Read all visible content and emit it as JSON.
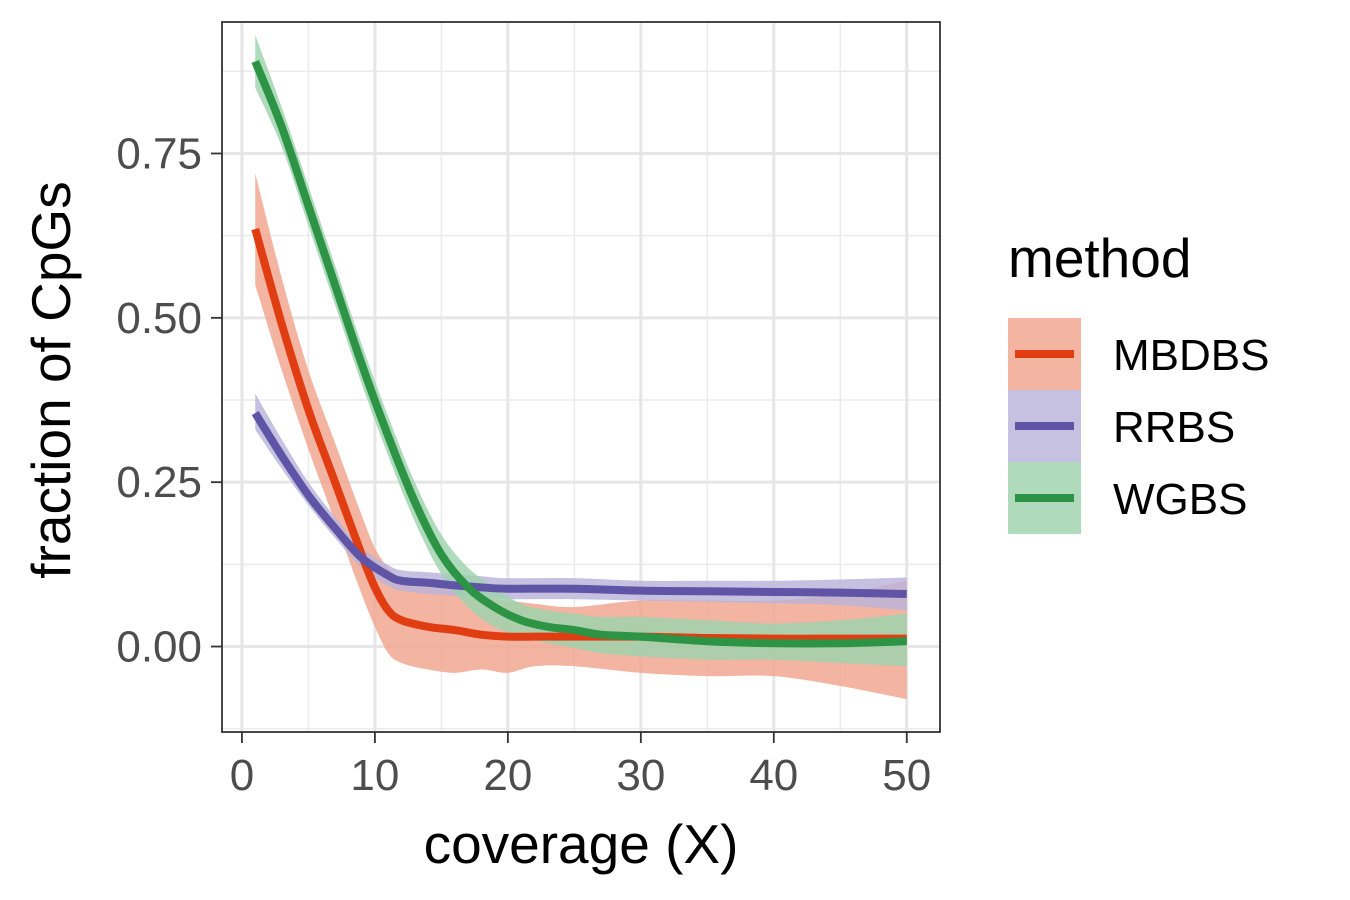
{
  "chart_data": {
    "type": "line",
    "xlabel": "coverage (X)",
    "ylabel": "fraction of CpGs",
    "xlim": [
      -1.5,
      52.5
    ],
    "ylim": [
      -0.13,
      0.95
    ],
    "x_ticks": [
      0,
      10,
      20,
      30,
      40,
      50
    ],
    "x_tick_labels": [
      "0",
      "10",
      "20",
      "30",
      "40",
      "50"
    ],
    "y_ticks": [
      0.0,
      0.25,
      0.5,
      0.75
    ],
    "y_tick_labels": [
      "0.00",
      "0.25",
      "0.50",
      "0.75"
    ],
    "grid": true,
    "legend": {
      "title": "method",
      "position": "right"
    },
    "series": [
      {
        "name": "MBDBS",
        "color": "#e03e12",
        "fill": "#f0a48c",
        "x": [
          1,
          3,
          5,
          7,
          9,
          10,
          11,
          12,
          14,
          16,
          18,
          20,
          22,
          25,
          30,
          35,
          40,
          45,
          50
        ],
        "y": [
          0.635,
          0.49,
          0.36,
          0.25,
          0.14,
          0.09,
          0.055,
          0.04,
          0.03,
          0.025,
          0.018,
          0.015,
          0.015,
          0.015,
          0.015,
          0.013,
          0.012,
          0.012,
          0.012
        ],
        "lower": [
          0.55,
          0.42,
          0.3,
          0.19,
          0.08,
          0.03,
          -0.01,
          -0.025,
          -0.035,
          -0.04,
          -0.035,
          -0.04,
          -0.03,
          -0.03,
          -0.04,
          -0.045,
          -0.045,
          -0.06,
          -0.08
        ],
        "upper": [
          0.72,
          0.56,
          0.42,
          0.31,
          0.2,
          0.15,
          0.12,
          0.105,
          0.095,
          0.09,
          0.075,
          0.07,
          0.065,
          0.06,
          0.07,
          0.07,
          0.07,
          0.08,
          0.1
        ]
      },
      {
        "name": "RRBS",
        "color": "#5f54a6",
        "fill": "#b9b3db",
        "x": [
          1,
          3,
          5,
          7,
          9,
          11,
          12,
          14,
          16,
          18,
          20,
          25,
          30,
          35,
          40,
          45,
          50
        ],
        "y": [
          0.355,
          0.29,
          0.23,
          0.18,
          0.135,
          0.108,
          0.1,
          0.097,
          0.093,
          0.09,
          0.088,
          0.088,
          0.085,
          0.084,
          0.083,
          0.082,
          0.08
        ],
        "lower": [
          0.33,
          0.27,
          0.215,
          0.165,
          0.12,
          0.092,
          0.085,
          0.08,
          0.077,
          0.073,
          0.072,
          0.072,
          0.07,
          0.068,
          0.066,
          0.063,
          0.055
        ],
        "upper": [
          0.385,
          0.315,
          0.25,
          0.197,
          0.15,
          0.124,
          0.116,
          0.113,
          0.11,
          0.107,
          0.104,
          0.104,
          0.1,
          0.1,
          0.1,
          0.102,
          0.105
        ]
      },
      {
        "name": "WGBS",
        "color": "#2d9446",
        "fill": "#9ed3ad",
        "x": [
          1,
          3,
          5,
          7,
          9,
          11,
          13,
          15,
          17,
          19,
          21,
          23,
          25,
          27,
          30,
          35,
          40,
          45,
          50
        ],
        "y": [
          0.89,
          0.79,
          0.67,
          0.55,
          0.43,
          0.32,
          0.22,
          0.14,
          0.09,
          0.06,
          0.04,
          0.03,
          0.025,
          0.018,
          0.015,
          0.008,
          0.005,
          0.005,
          0.008
        ],
        "lower": [
          0.85,
          0.76,
          0.64,
          0.52,
          0.4,
          0.29,
          0.19,
          0.11,
          0.06,
          0.03,
          0.015,
          0.005,
          -0.002,
          -0.01,
          -0.015,
          -0.02,
          -0.02,
          -0.025,
          -0.03
        ],
        "upper": [
          0.93,
          0.82,
          0.7,
          0.58,
          0.46,
          0.35,
          0.25,
          0.17,
          0.12,
          0.09,
          0.065,
          0.055,
          0.05,
          0.045,
          0.045,
          0.04,
          0.035,
          0.04,
          0.05
        ]
      }
    ]
  }
}
